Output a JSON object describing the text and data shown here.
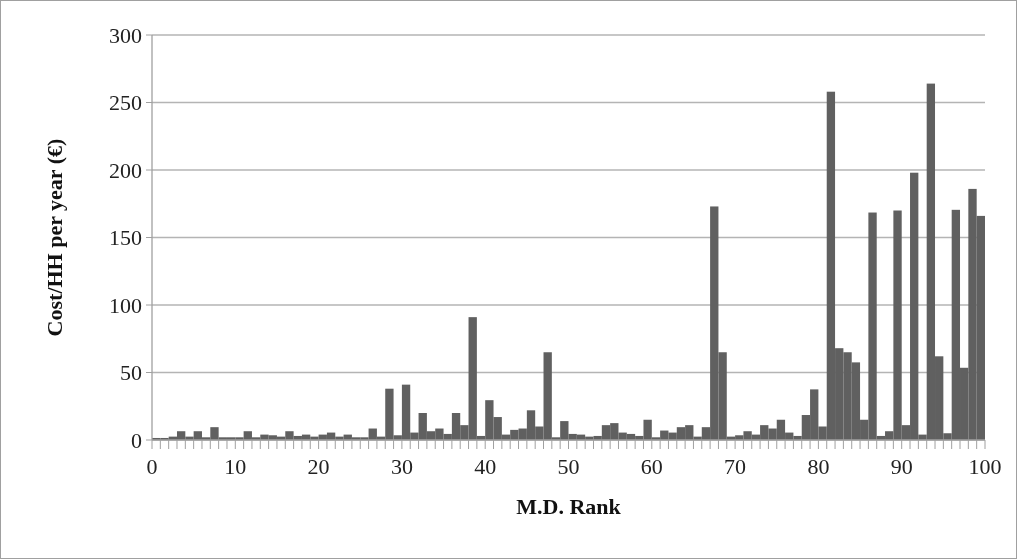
{
  "chart_data": {
    "type": "bar",
    "xlabel": "M.D. Rank",
    "ylabel": "Cost/HH per year (€)",
    "color": "#606060",
    "x": [
      0.5,
      1.5,
      2.5,
      3.5,
      4.5,
      5.5,
      6.5,
      7.5,
      8.5,
      9.5,
      10.5,
      11.5,
      12.5,
      13.5,
      14.5,
      15.5,
      16.5,
      17.5,
      18.5,
      19.5,
      20.5,
      21.5,
      22.5,
      23.5,
      24.5,
      25.5,
      26.5,
      27.5,
      28.5,
      29.5,
      30.5,
      31.5,
      32.5,
      33.5,
      34.5,
      35.5,
      36.5,
      37.5,
      38.5,
      39.5,
      40.5,
      41.5,
      42.5,
      43.5,
      44.5,
      45.5,
      46.5,
      47.5,
      48.5,
      49.5,
      50.5,
      51.5,
      52.5,
      53.5,
      54.5,
      55.5,
      56.5,
      57.5,
      58.5,
      59.5,
      60.5,
      61.5,
      62.5,
      63.5,
      64.5,
      65.5,
      66.5,
      67.5,
      68.5,
      69.5,
      70.5,
      71.5,
      72.5,
      73.5,
      74.5,
      75.5,
      76.5,
      77.5,
      78.5,
      79.5,
      80.5,
      81.5,
      82.5,
      83.5,
      84.5,
      85.5,
      86.5,
      87.5,
      88.5,
      89.5,
      90.5,
      91.5,
      92.5,
      93.5,
      94.5,
      95.5,
      96.5,
      97.5,
      98.5,
      99.5
    ],
    "values": [
      1.5,
      1.5,
      2.5,
      6.5,
      2.5,
      6.5,
      2,
      9.5,
      2,
      2,
      2,
      6.5,
      2,
      4,
      3.5,
      2.5,
      6.5,
      3,
      4,
      2.5,
      4,
      5.5,
      2.5,
      4,
      2,
      2,
      8.5,
      2.5,
      38,
      3.5,
      41,
      5.5,
      20,
      6.5,
      8.5,
      4.5,
      20,
      11,
      91,
      3,
      29.5,
      17,
      4,
      7.5,
      8.5,
      22,
      10,
      65,
      2,
      14,
      4.5,
      4,
      2.5,
      3,
      11,
      12.5,
      5.5,
      4.5,
      3,
      15,
      2,
      7,
      5.5,
      9.5,
      11,
      2.5,
      9.5,
      173,
      65,
      2.5,
      3.5,
      6.5,
      4,
      11,
      8.5,
      15,
      5.5,
      3,
      18.5,
      37.5,
      10,
      258,
      68,
      65,
      57.5,
      15,
      168.5,
      3,
      6.5,
      170,
      11,
      198,
      4,
      264,
      62,
      5,
      170.5,
      53.5,
      186,
      166
    ],
    "xlim": [
      0,
      100
    ],
    "xticks": [
      0,
      {
        "value": 1,
        "label": null
      },
      {
        "value": 2,
        "label": null
      },
      {
        "value": 3,
        "label": null
      },
      {
        "value": 4,
        "label": null
      },
      {
        "value": 5,
        "label": null
      },
      {
        "value": 6,
        "label": null
      },
      {
        "value": 7,
        "label": null
      },
      {
        "value": 8,
        "label": null
      },
      {
        "value": 9,
        "label": null
      },
      10,
      {
        "value": 11,
        "label": null
      },
      {
        "value": 12,
        "label": null
      },
      {
        "value": 13,
        "label": null
      },
      {
        "value": 14,
        "label": null
      },
      {
        "value": 15,
        "label": null
      },
      {
        "value": 16,
        "label": null
      },
      {
        "value": 17,
        "label": null
      },
      {
        "value": 18,
        "label": null
      },
      {
        "value": 19,
        "label": null
      },
      20,
      {
        "value": 21,
        "label": null
      },
      {
        "value": 22,
        "label": null
      },
      {
        "value": 23,
        "label": null
      },
      {
        "value": 24,
        "label": null
      },
      {
        "value": 25,
        "label": null
      },
      {
        "value": 26,
        "label": null
      },
      {
        "value": 27,
        "label": null
      },
      {
        "value": 28,
        "label": null
      },
      {
        "value": 29,
        "label": null
      },
      30,
      {
        "value": 31,
        "label": null
      },
      {
        "value": 32,
        "label": null
      },
      {
        "value": 33,
        "label": null
      },
      {
        "value": 34,
        "label": null
      },
      {
        "value": 35,
        "label": null
      },
      {
        "value": 36,
        "label": null
      },
      {
        "value": 37,
        "label": null
      },
      {
        "value": 38,
        "label": null
      },
      {
        "value": 39,
        "label": null
      },
      40,
      {
        "value": 41,
        "label": null
      },
      {
        "value": 42,
        "label": null
      },
      {
        "value": 43,
        "label": null
      },
      {
        "value": 44,
        "label": null
      },
      {
        "value": 45,
        "label": null
      },
      {
        "value": 46,
        "label": null
      },
      {
        "value": 47,
        "label": null
      },
      {
        "value": 48,
        "label": null
      },
      {
        "value": 49,
        "label": null
      },
      50,
      {
        "value": 51,
        "label": null
      },
      {
        "value": 52,
        "label": null
      },
      {
        "value": 53,
        "label": null
      },
      {
        "value": 54,
        "label": null
      },
      {
        "value": 55,
        "label": null
      },
      {
        "value": 56,
        "label": null
      },
      {
        "value": 57,
        "label": null
      },
      {
        "value": 58,
        "label": null
      },
      {
        "value": 59,
        "label": null
      },
      60,
      {
        "value": 61,
        "label": null
      },
      {
        "value": 62,
        "label": null
      },
      {
        "value": 63,
        "label": null
      },
      {
        "value": 64,
        "label": null
      },
      {
        "value": 65,
        "label": null
      },
      {
        "value": 66,
        "label": null
      },
      {
        "value": 67,
        "label": null
      },
      {
        "value": 68,
        "label": null
      },
      {
        "value": 69,
        "label": null
      },
      70,
      {
        "value": 71,
        "label": null
      },
      {
        "value": 72,
        "label": null
      },
      {
        "value": 73,
        "label": null
      },
      {
        "value": 74,
        "label": null
      },
      {
        "value": 75,
        "label": null
      },
      {
        "value": 76,
        "label": null
      },
      {
        "value": 77,
        "label": null
      },
      {
        "value": 78,
        "label": null
      },
      {
        "value": 79,
        "label": null
      },
      80,
      {
        "value": 81,
        "label": null
      },
      {
        "value": 82,
        "label": null
      },
      {
        "value": 83,
        "label": null
      },
      {
        "value": 84,
        "label": null
      },
      {
        "value": 85,
        "label": null
      },
      {
        "value": 86,
        "label": null
      },
      {
        "value": 87,
        "label": null
      },
      {
        "value": 88,
        "label": null
      },
      {
        "value": 89,
        "label": null
      },
      90,
      {
        "value": 91,
        "label": null
      },
      {
        "value": 92,
        "label": null
      },
      {
        "value": 93,
        "label": null
      },
      {
        "value": 94,
        "label": null
      },
      {
        "value": 95,
        "label": null
      },
      {
        "value": 96,
        "label": null
      },
      {
        "value": 97,
        "label": null
      },
      {
        "value": 98,
        "label": null
      },
      {
        "value": 99,
        "label": null
      },
      100
    ],
    "ylim": [
      0,
      300
    ],
    "yticks": [
      0,
      50,
      100,
      150,
      200,
      250,
      300
    ],
    "grid": "y"
  }
}
